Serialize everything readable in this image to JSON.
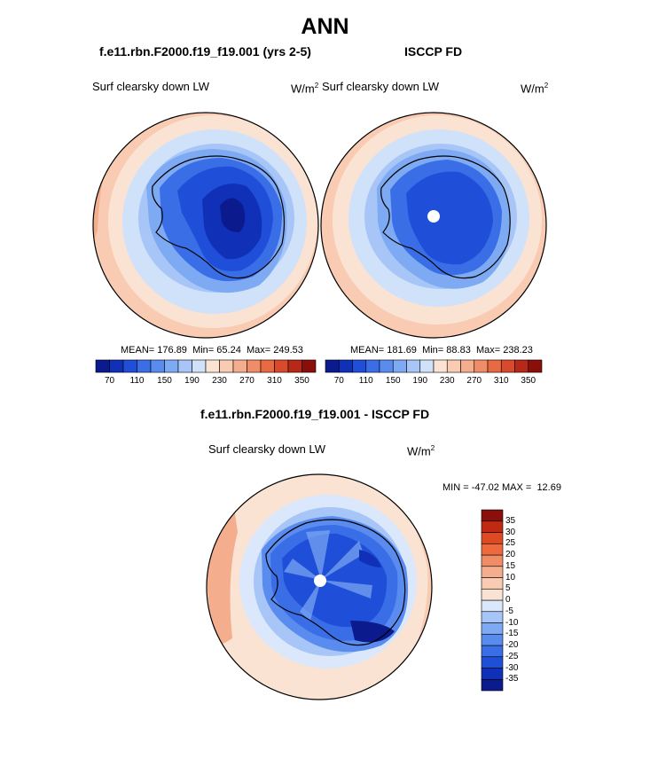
{
  "figure": {
    "title": "ANN"
  },
  "panels": [
    {
      "case_title": "f.e11.rbn.F2000.f19_f19.001 (yrs 2-5)",
      "variable": "Surf clearsky down LW",
      "units_base": "W/m",
      "units_exp": "2",
      "stats": {
        "mean_label": "MEAN=",
        "mean": "176.89",
        "min_label": "Min=",
        "min": "65.24",
        "max_label": "Max=",
        "max": "249.53"
      }
    },
    {
      "case_title": "ISCCP FD",
      "variable": "Surf clearsky down LW",
      "units_base": "W/m",
      "units_exp": "2",
      "stats": {
        "mean_label": "MEAN=",
        "mean": "181.69",
        "min_label": "Min=",
        "min": "88.83",
        "max_label": "Max=",
        "max": "238.23"
      }
    },
    {
      "case_title": "f.e11.rbn.F2000.f19_f19.001 - ISCCP FD",
      "variable": "Surf clearsky down LW",
      "units_base": "W/m",
      "units_exp": "2",
      "stats": {
        "min_label": "MIN =",
        "min": "-47.02",
        "max_label": "MAX =",
        "max": "12.69"
      }
    }
  ],
  "colorbar_abs": {
    "colors": [
      "#0b1a8c",
      "#1030b8",
      "#1f4fd8",
      "#3a6ee6",
      "#5a8cef",
      "#7eaaf3",
      "#a7c6f7",
      "#d0e1fa",
      "#fbe3d4",
      "#f8cbb2",
      "#f5ae8d",
      "#f08c66",
      "#e86a43",
      "#d84a2b",
      "#b82818",
      "#8a0e0a"
    ],
    "tick_labels": [
      "70",
      "110",
      "150",
      "190",
      "230",
      "270",
      "310",
      "350"
    ]
  },
  "colorbar_diff": {
    "colors": [
      "#0b1a8c",
      "#1030b8",
      "#1f4fd8",
      "#3a6ee6",
      "#5a8cef",
      "#7eaaf3",
      "#a7c6f7",
      "#dbe8fb",
      "#fbe3d4",
      "#f8cbb2",
      "#f5ae8d",
      "#f08c66",
      "#ec6a3e",
      "#e04a22",
      "#c02a12",
      "#8a0e0a"
    ],
    "tick_labels": [
      "-35",
      "-30",
      "-25",
      "-20",
      "-15",
      "-10",
      "-5",
      "0",
      "5",
      "10",
      "15",
      "20",
      "25",
      "30",
      "35"
    ]
  }
}
